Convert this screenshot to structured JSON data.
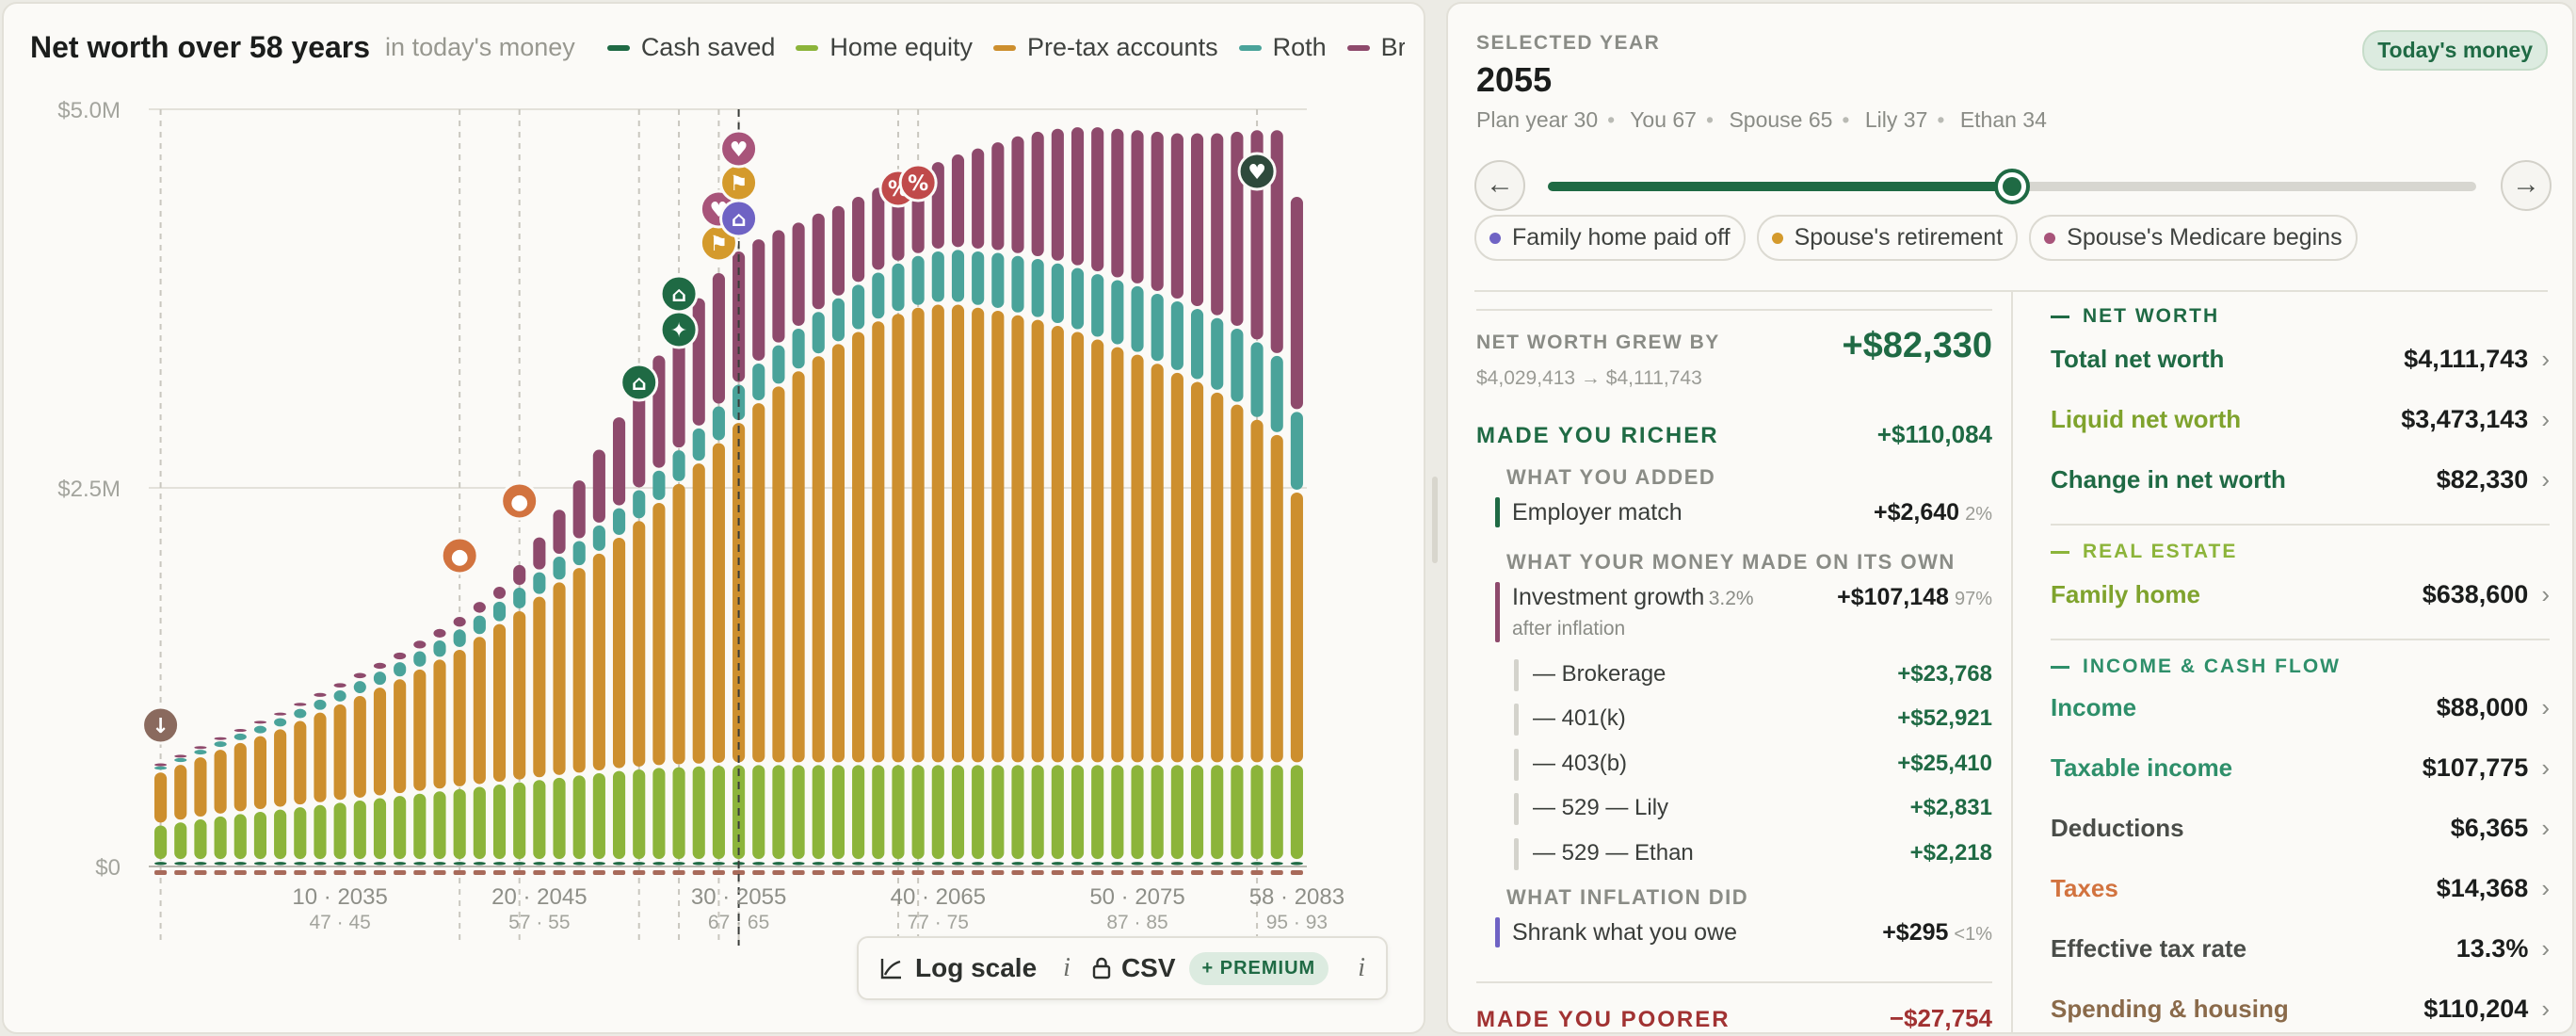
{
  "chart": {
    "title": "Net worth over 58 years",
    "subtitle": "in today's money",
    "legend": [
      {
        "label": "Cash saved",
        "color": "#1f6a44"
      },
      {
        "label": "Home equity",
        "color": "#8cb43a"
      },
      {
        "label": "Pre-tax accounts",
        "color": "#cd8f2e"
      },
      {
        "label": "Roth",
        "color": "#4aa39a"
      },
      {
        "label": "Brokerage",
        "color": "#8e4a6c"
      }
    ],
    "toolbar": {
      "log_scale": "Log scale",
      "info": "i",
      "csv": "CSV",
      "premium": "+ PREMIUM"
    }
  },
  "chart_data": {
    "type": "bar",
    "stacked": true,
    "x_start": 2026,
    "x_end": 2083,
    "selected_x": 2055,
    "y_ticks": [
      "$0",
      "$2.5M",
      "$5.0M"
    ],
    "ylim": [
      0,
      5000000
    ],
    "x_tick_labels": [
      {
        "year": 2035,
        "top": "10 · 2035",
        "bottom": "47 · 45"
      },
      {
        "year": 2045,
        "top": "20 · 2045",
        "bottom": "57 · 55"
      },
      {
        "year": 2055,
        "top": "30 · 2055",
        "bottom": "67 · 65"
      },
      {
        "year": 2065,
        "top": "40 · 2065",
        "bottom": "77 · 75"
      },
      {
        "year": 2075,
        "top": "50 · 2075",
        "bottom": "87 · 85"
      },
      {
        "year": 2083,
        "top": "58 · 2083",
        "bottom": "95 · 93"
      }
    ],
    "series": [
      {
        "name": "Cash saved",
        "color": "#1f6a44",
        "values": [
          40000,
          40000,
          40000,
          40000,
          40000,
          40000,
          40000,
          40000,
          40000,
          40000,
          40000,
          40000,
          40000,
          40000,
          40000,
          40000,
          40000,
          40000,
          40000,
          40000,
          40000,
          40000,
          40000,
          40000,
          40000,
          40000,
          40000,
          40000,
          40000,
          40000,
          40000,
          40000,
          40000,
          40000,
          40000,
          40000,
          40000,
          40000,
          40000,
          40000,
          40000,
          40000,
          40000,
          40000,
          40000,
          40000,
          40000,
          40000,
          40000,
          40000,
          40000,
          40000,
          40000,
          40000,
          40000,
          40000,
          40000,
          40000
        ]
      },
      {
        "name": "Home equity",
        "color": "#8cb43a",
        "values": [
          240000,
          260000,
          280000,
          300000,
          315000,
          330000,
          345000,
          360000,
          375000,
          390000,
          405000,
          420000,
          435000,
          450000,
          465000,
          480000,
          495000,
          510000,
          525000,
          540000,
          555000,
          570000,
          585000,
          600000,
          610000,
          620000,
          625000,
          630000,
          635000,
          638000,
          638600,
          638600,
          638600,
          638600,
          638600,
          638600,
          638600,
          638600,
          638600,
          638600,
          638600,
          638600,
          638600,
          638600,
          638600,
          638600,
          638600,
          638600,
          638600,
          638600,
          638600,
          638600,
          638600,
          638600,
          638600,
          638600,
          638600,
          638600
        ]
      },
      {
        "name": "Pre-tax accounts",
        "color": "#cd8f2e",
        "values": [
          350000,
          380000,
          410000,
          440000,
          470000,
          500000,
          530000,
          570000,
          610000,
          650000,
          690000,
          730000,
          770000,
          820000,
          870000,
          920000,
          990000,
          1060000,
          1130000,
          1210000,
          1290000,
          1370000,
          1450000,
          1540000,
          1640000,
          1750000,
          1870000,
          2000000,
          2130000,
          2260000,
          2390000,
          2500000,
          2600000,
          2700000,
          2780000,
          2860000,
          2930000,
          2980000,
          3020000,
          3040000,
          3040000,
          3020000,
          3000000,
          2970000,
          2940000,
          2900000,
          2860000,
          2810000,
          2760000,
          2710000,
          2650000,
          2590000,
          2530000,
          2460000,
          2380000,
          2280000,
          2180000,
          1800000
        ]
      },
      {
        "name": "Roth",
        "color": "#4aa39a",
        "values": [
          40000,
          45000,
          50000,
          56000,
          62000,
          68000,
          74000,
          80000,
          86000,
          92000,
          99000,
          106000,
          113000,
          120000,
          127000,
          134000,
          141000,
          148000,
          155000,
          162000,
          170000,
          178000,
          186000,
          195000,
          204000,
          213000,
          222000,
          232000,
          242000,
          252000,
          262000,
          272000,
          282000,
          292000,
          302000,
          312000,
          322000,
          332000,
          342000,
          352000,
          362000,
          372000,
          382000,
          392000,
          402000,
          412000,
          422000,
          432000,
          442000,
          452000,
          462000,
          472000,
          482000,
          492000,
          502000,
          512000,
          522000,
          532000
        ]
      },
      {
        "name": "Brokerage",
        "color": "#8e4a6c",
        "values": [
          20000,
          22000,
          24000,
          27000,
          30000,
          33000,
          36000,
          40000,
          44000,
          48000,
          53000,
          58000,
          64000,
          70000,
          76000,
          83000,
          90000,
          98000,
          150000,
          230000,
          310000,
          400000,
          500000,
          600000,
          690000,
          760000,
          820000,
          860000,
          880000,
          880000,
          820000,
          760000,
          700000,
          650000,
          610000,
          580000,
          560000,
          560000,
          570000,
          590000,
          630000,
          680000,
          730000,
          790000,
          840000,
          890000,
          930000,
          970000,
          1000000,
          1030000,
          1070000,
          1110000,
          1160000,
          1220000,
          1300000,
          1400000,
          1490000,
          1420000
        ]
      }
    ],
    "negative_series": [
      {
        "name": "Debt",
        "color": "#a86a5a",
        "value": -20000
      }
    ]
  },
  "panel": {
    "selected_label": "SELECTED YEAR",
    "selected_year": "2055",
    "today_badge": "Today's money",
    "plan_info": [
      "Plan year 30",
      "You 67",
      "Spouse 65",
      "Lily 37",
      "Ethan 34"
    ],
    "slider_fraction": 0.5,
    "prev_icon": "←",
    "next_icon": "→",
    "events": [
      {
        "label": "Family home paid off",
        "color": "#6f63c4"
      },
      {
        "label": "Spouse's retirement",
        "color": "#d49a2c"
      },
      {
        "label": "Spouse's Medicare begins",
        "color": "#a8547a"
      }
    ],
    "net_worth_grew": {
      "label": "NET WORTH GREW BY",
      "range": "$4,029,413 → $4,111,743",
      "value": "+$82,330"
    },
    "richer": {
      "label": "MADE YOU RICHER",
      "value": "+$110,084"
    },
    "what_you_added": "WHAT YOU ADDED",
    "employer_match": {
      "label": "Employer match",
      "value": "+$2,640",
      "pct": "2%"
    },
    "what_money_made": "WHAT YOUR MONEY MADE ON ITS OWN",
    "investment_growth": {
      "label": "Investment growth",
      "rate": "3.2%",
      "note": "after inflation",
      "value": "+$107,148",
      "pct": "97%"
    },
    "growth_items": [
      {
        "label": "— Brokerage",
        "value": "+$23,768"
      },
      {
        "label": "— 401(k)",
        "value": "+$52,921"
      },
      {
        "label": "— 403(b)",
        "value": "+$25,410"
      },
      {
        "label": "— 529 — Lily",
        "value": "+$2,831"
      },
      {
        "label": "— 529 — Ethan",
        "value": "+$2,218"
      }
    ],
    "what_inflation_did": "WHAT INFLATION DID",
    "shrank": {
      "label": "Shrank what you owe",
      "value": "+$295",
      "pct": "<1%"
    },
    "poorer": {
      "label": "MADE YOU POORER",
      "value": "−$27,754"
    },
    "metrics": {
      "net_worth_head": "NET WORTH",
      "total": {
        "label": "Total net worth",
        "value": "$4,111,743"
      },
      "liquid": {
        "label": "Liquid net worth",
        "value": "$3,473,143"
      },
      "change": {
        "label": "Change in net worth",
        "value": "$82,330"
      },
      "real_estate_head": "REAL ESTATE",
      "family_home": {
        "label": "Family home",
        "value": "$638,600"
      },
      "income_head": "INCOME & CASH FLOW",
      "income": {
        "label": "Income",
        "value": "$88,000"
      },
      "taxable": {
        "label": "Taxable income",
        "value": "$107,775"
      },
      "deductions": {
        "label": "Deductions",
        "value": "$6,365"
      },
      "taxes": {
        "label": "Taxes",
        "value": "$14,368"
      },
      "eff_rate": {
        "label": "Effective tax rate",
        "value": "13.3%"
      },
      "spending": {
        "label": "Spending & housing",
        "value": "$110,204"
      },
      "chevron": "›"
    }
  }
}
